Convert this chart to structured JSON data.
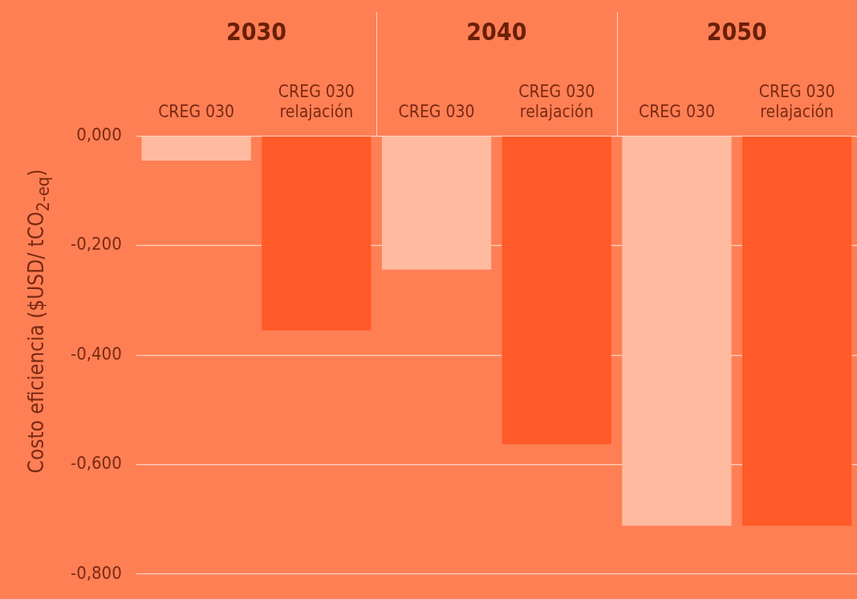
{
  "chart_data": {
    "type": "bar",
    "ylabel": "Costo eficiencia ($USD/ tCO$_{2-eq}$)",
    "categories": [
      "CREG 030",
      "CREG 030 relajación",
      "CREG 030",
      "CREG 030 relajación",
      "CREG 030",
      "CREG 030 relajación"
    ],
    "values": [
      -0.045,
      -0.355,
      -0.244,
      -0.563,
      -0.712,
      -0.712
    ],
    "colors": [
      "#ffbba0",
      "#ff5a28",
      "#ffbba0",
      "#ff5a28",
      "#ffbba0",
      "#ff5a28"
    ],
    "annotations": [
      "2030",
      "2040",
      "2050"
    ],
    "ylim": [
      -0.8,
      0
    ],
    "yticks": [
      {
        "value": 0,
        "label": "0,000"
      },
      {
        "value": -0.2,
        "label": "-0,200"
      },
      {
        "value": -0.4,
        "label": "-0,400"
      },
      {
        "value": -0.6,
        "label": "-0,600"
      },
      {
        "value": -0.8,
        "label": "-0,800"
      }
    ],
    "grid": "y",
    "legend": false
  }
}
